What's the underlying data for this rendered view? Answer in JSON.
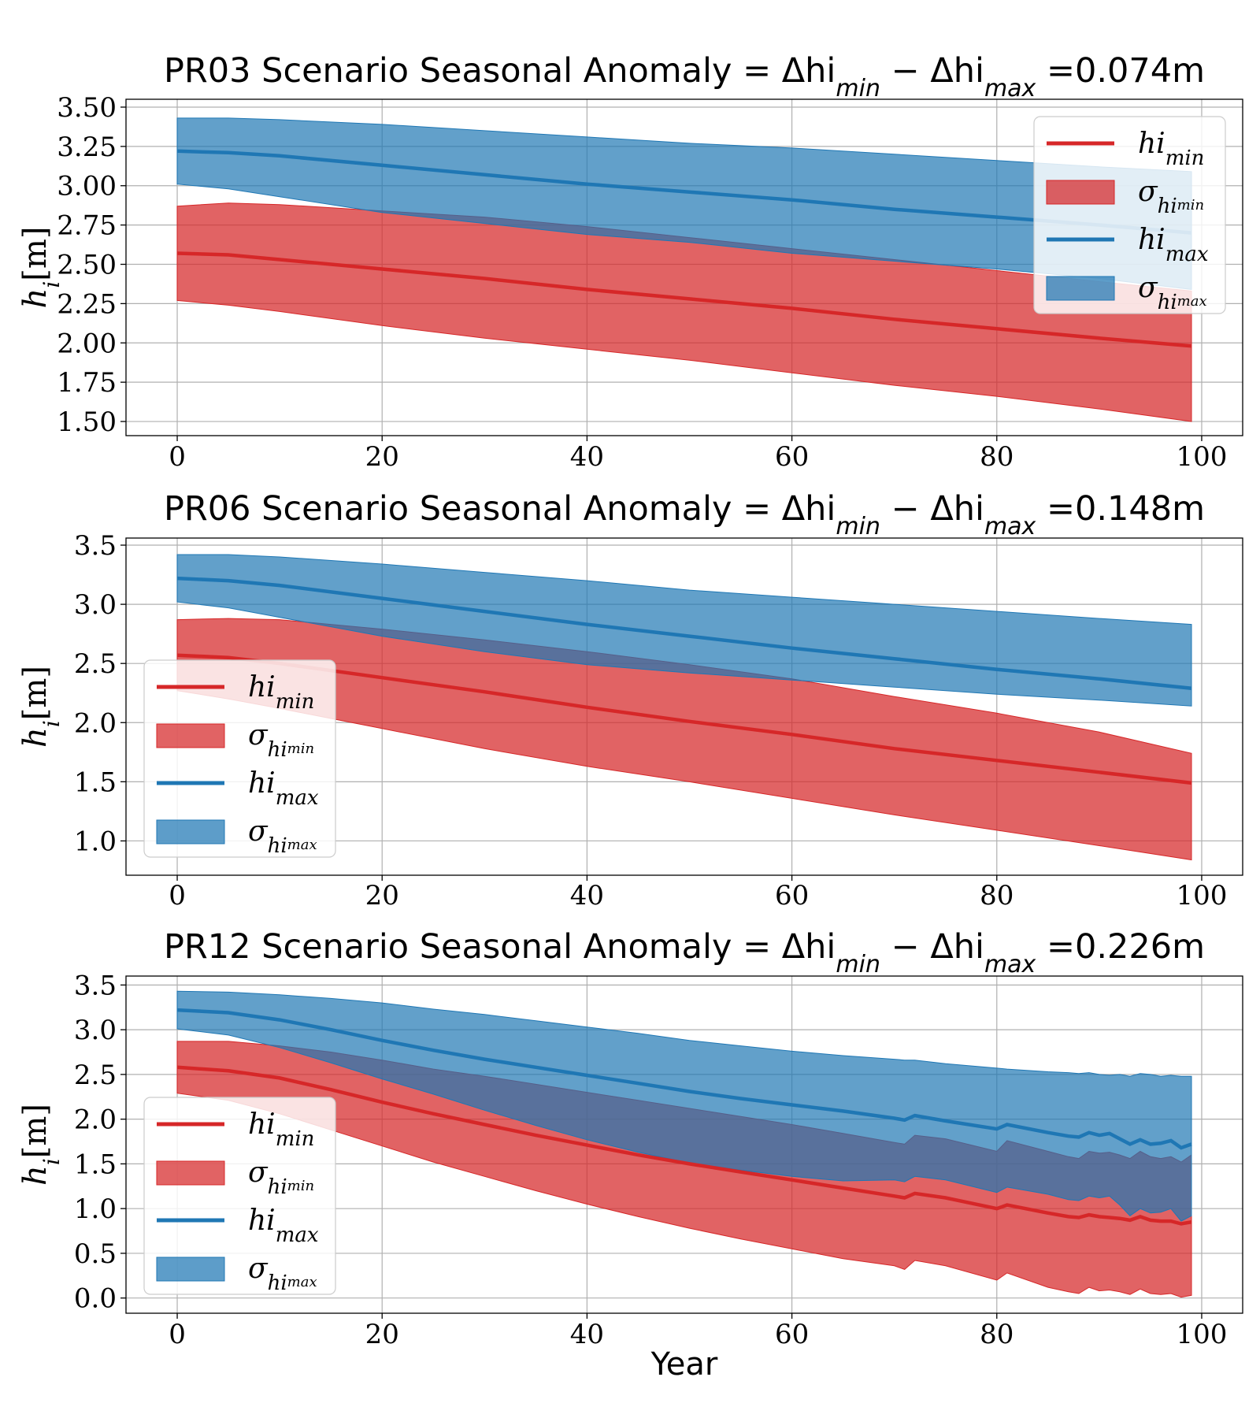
{
  "chart_data": [
    {
      "type": "area",
      "title": "PR03 Scenario Seasonal Anomaly = Δhi_min − Δhi_max =0.074m",
      "xlabel": "",
      "ylabel": "h_i[m]",
      "xlim": [
        -5,
        104
      ],
      "ylim": [
        1.41,
        3.55
      ],
      "xticks": [
        0,
        20,
        40,
        60,
        80,
        100
      ],
      "xtick_labels": [
        "0",
        "20",
        "40",
        "60",
        "80",
        "100"
      ],
      "yticks": [
        1.5,
        1.75,
        2.0,
        2.25,
        2.5,
        2.75,
        3.0,
        3.25,
        3.5
      ],
      "ytick_labels": [
        "1.50",
        "1.75",
        "2.00",
        "2.25",
        "2.50",
        "2.75",
        "3.00",
        "3.25",
        "3.50"
      ],
      "grid": true,
      "legend_position": "upper right",
      "x": [
        0,
        5,
        10,
        20,
        30,
        40,
        50,
        60,
        70,
        80,
        90,
        99
      ],
      "series": [
        {
          "name": "hi_min",
          "kind": "line",
          "color": "#d62728",
          "values": [
            2.57,
            2.56,
            2.53,
            2.47,
            2.41,
            2.34,
            2.28,
            2.22,
            2.15,
            2.09,
            2.03,
            1.98
          ]
        },
        {
          "name": "σ_hi_min",
          "kind": "band",
          "color": "#d62728",
          "lower": [
            2.27,
            2.24,
            2.2,
            2.11,
            2.03,
            1.96,
            1.89,
            1.81,
            1.73,
            1.66,
            1.58,
            1.5
          ],
          "upper": [
            2.87,
            2.89,
            2.88,
            2.84,
            2.8,
            2.74,
            2.67,
            2.6,
            2.53,
            2.46,
            2.39,
            2.33
          ]
        },
        {
          "name": "hi_max",
          "kind": "line",
          "color": "#1f77b4",
          "values": [
            3.22,
            3.21,
            3.19,
            3.13,
            3.07,
            3.01,
            2.96,
            2.91,
            2.85,
            2.8,
            2.75,
            2.7
          ]
        },
        {
          "name": "σ_hi_max",
          "kind": "band",
          "color": "#1f77b4",
          "lower": [
            3.01,
            2.98,
            2.93,
            2.83,
            2.76,
            2.69,
            2.64,
            2.57,
            2.52,
            2.47,
            2.41,
            2.34
          ],
          "upper": [
            3.43,
            3.43,
            3.42,
            3.39,
            3.35,
            3.31,
            3.27,
            3.24,
            3.2,
            3.16,
            3.12,
            3.09
          ]
        }
      ]
    },
    {
      "type": "area",
      "title": "PR06 Scenario Seasonal Anomaly = Δhi_min − Δhi_max =0.148m",
      "xlabel": "",
      "ylabel": "h_i[m]",
      "xlim": [
        -5,
        104
      ],
      "ylim": [
        0.71,
        3.56
      ],
      "xticks": [
        0,
        20,
        40,
        60,
        80,
        100
      ],
      "xtick_labels": [
        "0",
        "20",
        "40",
        "60",
        "80",
        "100"
      ],
      "yticks": [
        1.0,
        1.5,
        2.0,
        2.5,
        3.0,
        3.5
      ],
      "ytick_labels": [
        "1.0",
        "1.5",
        "2.0",
        "2.5",
        "3.0",
        "3.5"
      ],
      "grid": true,
      "legend_position": "lower left",
      "x": [
        0,
        5,
        10,
        20,
        30,
        40,
        50,
        60,
        70,
        80,
        90,
        99
      ],
      "series": [
        {
          "name": "hi_min",
          "kind": "line",
          "color": "#d62728",
          "values": [
            2.57,
            2.55,
            2.5,
            2.38,
            2.26,
            2.13,
            2.01,
            1.9,
            1.78,
            1.68,
            1.58,
            1.49
          ]
        },
        {
          "name": "σ_hi_min",
          "kind": "band",
          "color": "#d62728",
          "lower": [
            2.27,
            2.2,
            2.12,
            1.95,
            1.78,
            1.63,
            1.5,
            1.36,
            1.22,
            1.09,
            0.96,
            0.84
          ],
          "upper": [
            2.87,
            2.88,
            2.87,
            2.79,
            2.7,
            2.6,
            2.49,
            2.37,
            2.22,
            2.08,
            1.92,
            1.74
          ]
        },
        {
          "name": "hi_max",
          "kind": "line",
          "color": "#1f77b4",
          "values": [
            3.22,
            3.2,
            3.16,
            3.05,
            2.94,
            2.83,
            2.73,
            2.63,
            2.54,
            2.45,
            2.37,
            2.29
          ]
        },
        {
          "name": "σ_hi_max",
          "kind": "band",
          "color": "#1f77b4",
          "lower": [
            3.02,
            2.97,
            2.89,
            2.73,
            2.6,
            2.49,
            2.42,
            2.36,
            2.3,
            2.24,
            2.19,
            2.14
          ],
          "upper": [
            3.42,
            3.42,
            3.4,
            3.34,
            3.27,
            3.2,
            3.12,
            3.06,
            3.0,
            2.94,
            2.88,
            2.83
          ]
        }
      ]
    },
    {
      "type": "area",
      "title": "PR12 Scenario Seasonal Anomaly = Δhi_min − Δhi_max =0.226m",
      "xlabel": "Year",
      "ylabel": "h_i[m]",
      "xlim": [
        -5,
        104
      ],
      "ylim": [
        -0.17,
        3.6
      ],
      "xticks": [
        0,
        20,
        40,
        60,
        80,
        100
      ],
      "xtick_labels": [
        "0",
        "20",
        "40",
        "60",
        "80",
        "100"
      ],
      "yticks": [
        0.0,
        0.5,
        1.0,
        1.5,
        2.0,
        2.5,
        3.0,
        3.5
      ],
      "ytick_labels": [
        "0.0",
        "0.5",
        "1.0",
        "1.5",
        "2.0",
        "2.5",
        "3.0",
        "3.5"
      ],
      "grid": true,
      "legend_position": "lower left",
      "x": [
        0,
        5,
        10,
        15,
        20,
        25,
        30,
        35,
        40,
        45,
        50,
        55,
        60,
        65,
        70,
        71,
        72,
        75,
        80,
        81,
        85,
        87,
        88,
        89,
        90,
        91,
        92,
        93,
        94,
        95,
        96,
        97,
        98,
        99
      ],
      "series": [
        {
          "name": "hi_min",
          "kind": "line",
          "color": "#d62728",
          "values": [
            2.58,
            2.54,
            2.46,
            2.33,
            2.19,
            2.06,
            1.94,
            1.82,
            1.71,
            1.6,
            1.5,
            1.41,
            1.32,
            1.23,
            1.14,
            1.12,
            1.17,
            1.12,
            1.0,
            1.04,
            0.95,
            0.91,
            0.9,
            0.93,
            0.91,
            0.9,
            0.89,
            0.87,
            0.91,
            0.87,
            0.86,
            0.86,
            0.83,
            0.85
          ]
        },
        {
          "name": "σ_hi_min",
          "kind": "band",
          "color": "#d62728",
          "lower": [
            2.29,
            2.21,
            2.06,
            1.88,
            1.7,
            1.52,
            1.36,
            1.2,
            1.05,
            0.91,
            0.78,
            0.66,
            0.55,
            0.44,
            0.36,
            0.32,
            0.42,
            0.36,
            0.2,
            0.28,
            0.12,
            0.07,
            0.05,
            0.12,
            0.08,
            0.09,
            0.07,
            0.04,
            0.1,
            0.05,
            0.04,
            0.05,
            0.01,
            0.03
          ]
        },
        {
          "name": "σ_hi_min_upper",
          "kind": "band_upper",
          "color": "#d62728",
          "values": [
            2.87,
            2.87,
            2.82,
            2.75,
            2.66,
            2.56,
            2.48,
            2.39,
            2.3,
            2.21,
            2.12,
            2.03,
            1.94,
            1.84,
            1.74,
            1.72,
            1.82,
            1.78,
            1.64,
            1.76,
            1.64,
            1.58,
            1.56,
            1.64,
            1.62,
            1.63,
            1.6,
            1.56,
            1.64,
            1.58,
            1.56,
            1.58,
            1.52,
            1.6
          ]
        },
        {
          "name": "hi_max",
          "kind": "line",
          "color": "#1f77b4",
          "values": [
            3.22,
            3.19,
            3.11,
            3.0,
            2.88,
            2.77,
            2.67,
            2.58,
            2.49,
            2.4,
            2.31,
            2.23,
            2.16,
            2.09,
            2.01,
            1.99,
            2.04,
            1.98,
            1.89,
            1.94,
            1.85,
            1.81,
            1.8,
            1.85,
            1.82,
            1.84,
            1.78,
            1.72,
            1.77,
            1.72,
            1.73,
            1.76,
            1.68,
            1.72
          ]
        },
        {
          "name": "σ_hi_max",
          "kind": "band",
          "color": "#1f77b4",
          "lower": [
            3.01,
            2.94,
            2.8,
            2.63,
            2.45,
            2.28,
            2.1,
            1.93,
            1.77,
            1.63,
            1.51,
            1.43,
            1.36,
            1.31,
            1.32,
            1.3,
            1.36,
            1.32,
            1.18,
            1.24,
            1.16,
            1.1,
            1.09,
            1.14,
            1.12,
            1.14,
            1.04,
            0.92,
            1.0,
            0.95,
            0.96,
            1.0,
            0.86,
            0.92
          ],
          "upper": [
            3.43,
            3.42,
            3.39,
            3.35,
            3.3,
            3.23,
            3.17,
            3.1,
            3.03,
            2.96,
            2.88,
            2.82,
            2.76,
            2.71,
            2.67,
            2.66,
            2.66,
            2.62,
            2.57,
            2.56,
            2.53,
            2.52,
            2.51,
            2.52,
            2.5,
            2.49,
            2.5,
            2.48,
            2.51,
            2.5,
            2.48,
            2.49,
            2.48,
            2.48
          ]
        }
      ]
    }
  ],
  "legend": {
    "hi_min": {
      "base": "hi",
      "sub": "min"
    },
    "sigma_min": {
      "base": "σ",
      "sub": "hi",
      "subsub": "min"
    },
    "hi_max": {
      "base": "hi",
      "sub": "max"
    },
    "sigma_max": {
      "base": "σ",
      "sub": "hi",
      "subsub": "max"
    }
  },
  "colors": {
    "red": "#d62728",
    "blue": "#1f77b4",
    "overlap": "#5b6f9c"
  }
}
